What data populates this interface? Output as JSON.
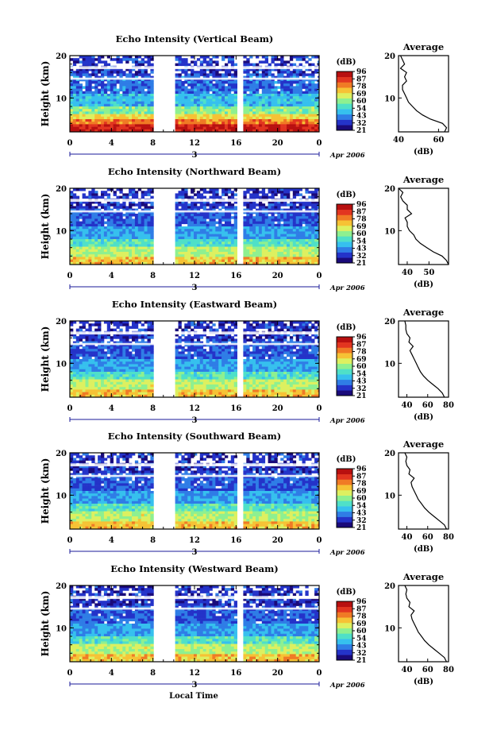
{
  "chart_data": {
    "type": "heatmap",
    "x_label": "Local Time",
    "date_label": "Apr 2006",
    "day_label": "3",
    "x_ticks": [
      "0",
      "4",
      "8",
      "12",
      "16",
      "20",
      "0"
    ],
    "x_range_hours": [
      0,
      24
    ],
    "y_label": "Height (km)",
    "y_ticks": [
      "20",
      "10"
    ],
    "y_range_km": [
      2,
      20
    ],
    "data_gaps_hours": [
      [
        8,
        10
      ],
      [
        16,
        16.6
      ]
    ],
    "colorbar": {
      "unit": "(dB)",
      "labels": [
        "96",
        "87",
        "78",
        "69",
        "60",
        "54",
        "43",
        "32",
        "21"
      ],
      "colors": [
        "#1a0a7a",
        "#2433c9",
        "#2f7de6",
        "#36c0ee",
        "#4fe0c8",
        "#8ef090",
        "#ddf060",
        "#f6c235",
        "#f07a25",
        "#e23520",
        "#b81010"
      ]
    },
    "panels": [
      {
        "title": "Echo Intensity (Vertical Beam)",
        "average": {
          "title": "Average",
          "xlabel": "(dB)",
          "x_ticks": [
            "40",
            "60"
          ],
          "y_ticks": [
            "20",
            "10"
          ],
          "profile": [
            [
              63,
              2
            ],
            [
              64,
              3
            ],
            [
              62,
              4
            ],
            [
              56,
              5
            ],
            [
              52,
              6
            ],
            [
              49,
              7
            ],
            [
              47,
              8
            ],
            [
              45,
              9
            ],
            [
              44,
              10
            ],
            [
              43,
              11
            ],
            [
              42,
              12
            ],
            [
              42,
              13
            ],
            [
              44,
              14
            ],
            [
              43,
              15
            ],
            [
              44,
              16
            ],
            [
              41,
              17
            ],
            [
              43,
              18
            ],
            [
              42,
              19
            ],
            [
              41,
              20
            ]
          ]
        }
      },
      {
        "title": "Echo Intensity (Northward Beam)",
        "average": {
          "title": "Average",
          "xlabel": "(dB)",
          "x_ticks": [
            "40",
            "50"
          ],
          "y_ticks": [
            "20",
            "10"
          ],
          "profile": [
            [
              59,
              2
            ],
            [
              58,
              3
            ],
            [
              56,
              4
            ],
            [
              52,
              5
            ],
            [
              49,
              6
            ],
            [
              46,
              7
            ],
            [
              44,
              8
            ],
            [
              43,
              9
            ],
            [
              41,
              10
            ],
            [
              40,
              11
            ],
            [
              40,
              12
            ],
            [
              39,
              13
            ],
            [
              42,
              14
            ],
            [
              40,
              15
            ],
            [
              40,
              16
            ],
            [
              38,
              17
            ],
            [
              37,
              18
            ],
            [
              38,
              19
            ],
            [
              36,
              20
            ]
          ]
        }
      },
      {
        "title": "Echo Intensity (Eastward Beam)",
        "average": {
          "title": "Average",
          "xlabel": "(dB)",
          "x_ticks": [
            "40",
            "60",
            "80"
          ],
          "y_ticks": [
            "20",
            "10"
          ],
          "profile": [
            [
              76,
              2
            ],
            [
              74,
              3
            ],
            [
              70,
              4
            ],
            [
              65,
              5
            ],
            [
              60,
              6
            ],
            [
              56,
              7
            ],
            [
              53,
              8
            ],
            [
              51,
              9
            ],
            [
              49,
              10
            ],
            [
              47,
              11
            ],
            [
              45,
              12
            ],
            [
              43,
              13
            ],
            [
              46,
              14
            ],
            [
              42,
              15
            ],
            [
              43,
              16
            ],
            [
              40,
              17
            ],
            [
              39,
              18
            ],
            [
              39,
              19
            ],
            [
              38,
              20
            ]
          ]
        }
      },
      {
        "title": "Echo Intensity (Southward Beam)",
        "average": {
          "title": "Average",
          "xlabel": "(dB)",
          "x_ticks": [
            "40",
            "60",
            "80"
          ],
          "y_ticks": [
            "20",
            "10"
          ],
          "profile": [
            [
              78,
              2
            ],
            [
              76,
              3
            ],
            [
              71,
              4
            ],
            [
              66,
              5
            ],
            [
              61,
              6
            ],
            [
              57,
              7
            ],
            [
              54,
              8
            ],
            [
              51,
              9
            ],
            [
              49,
              10
            ],
            [
              47,
              11
            ],
            [
              45,
              12
            ],
            [
              44,
              13
            ],
            [
              47,
              14
            ],
            [
              42,
              15
            ],
            [
              43,
              16
            ],
            [
              40,
              17
            ],
            [
              39,
              18
            ],
            [
              40,
              19
            ],
            [
              38,
              20
            ]
          ]
        }
      },
      {
        "title": "Echo Intensity (Westward Beam)",
        "average": {
          "title": "Average",
          "xlabel": "(dB)",
          "x_ticks": [
            "40",
            "60",
            "80"
          ],
          "y_ticks": [
            "20",
            "10"
          ],
          "profile": [
            [
              78,
              2
            ],
            [
              76,
              3
            ],
            [
              71,
              4
            ],
            [
              66,
              5
            ],
            [
              61,
              6
            ],
            [
              57,
              7
            ],
            [
              54,
              8
            ],
            [
              51,
              9
            ],
            [
              49,
              10
            ],
            [
              47,
              11
            ],
            [
              45,
              12
            ],
            [
              44,
              13
            ],
            [
              47,
              14
            ],
            [
              42,
              15
            ],
            [
              43,
              16
            ],
            [
              40,
              17
            ],
            [
              39,
              18
            ],
            [
              40,
              19
            ],
            [
              38,
              20
            ]
          ]
        }
      }
    ]
  }
}
